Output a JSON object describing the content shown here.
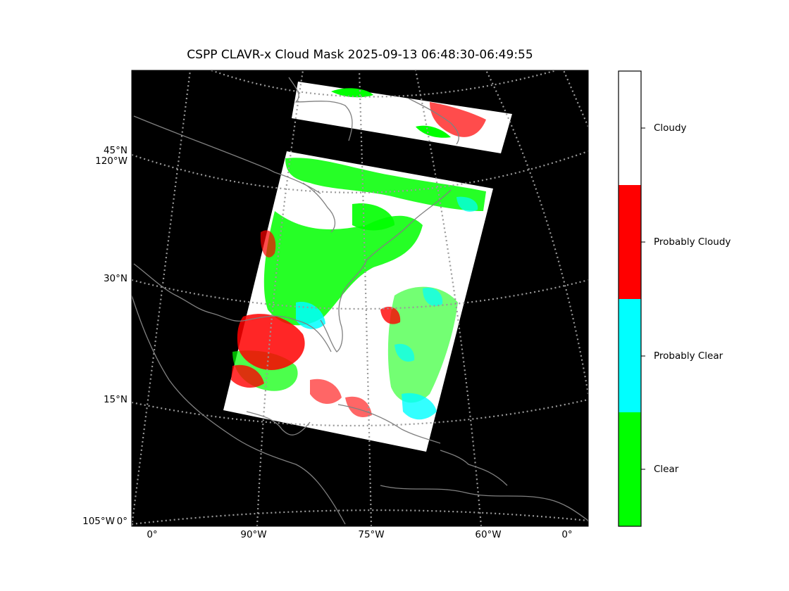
{
  "title": "CSPP CLAVR-x Cloud Mask 2025-09-13 06:48:30-06:49:55",
  "lat_labels": [
    "45°N",
    "120°W",
    "30°N",
    "15°N",
    "105°W",
    "0°"
  ],
  "lon_labels": [
    "0°",
    "90°W",
    "75°W",
    "60°W",
    "0°"
  ],
  "legend": {
    "categories": [
      "Cloudy",
      "Probably Cloudy",
      "Probably Clear",
      "Clear"
    ],
    "colors": [
      "#ffffff",
      "#ff0000",
      "#00ffff",
      "#00ff00"
    ]
  },
  "colors": {
    "background": "#000000",
    "gridline": "#9a9a9a",
    "coastline": "#808080"
  }
}
